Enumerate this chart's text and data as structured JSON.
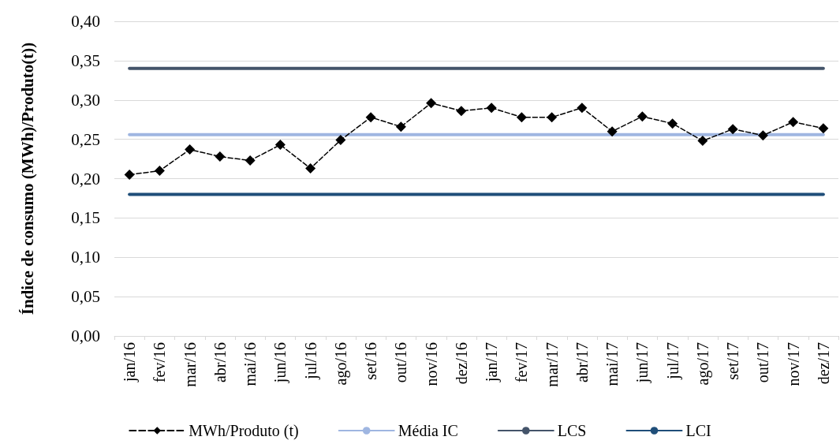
{
  "chart_data": {
    "type": "line",
    "ylabel": "Índice de consumo (MWh)/Produto(t))",
    "categories": [
      "jan/16",
      "fev/16",
      "mar/16",
      "abr/16",
      "mai/16",
      "jun/16",
      "jul/16",
      "ago/16",
      "set/16",
      "out/16",
      "nov/16",
      "dez/16",
      "jan/17",
      "fev/17",
      "mar/17",
      "abr/17",
      "mai/17",
      "jun/17",
      "jul/17",
      "ago/17",
      "set/17",
      "out/17",
      "nov/17",
      "dez/17"
    ],
    "series": [
      {
        "name": "MWh/Produto (t)",
        "color": "#000000",
        "marker": "diamond",
        "line_style": "dashed",
        "values": [
          0.205,
          0.21,
          0.237,
          0.228,
          0.223,
          0.243,
          0.213,
          0.249,
          0.278,
          0.266,
          0.296,
          0.286,
          0.29,
          0.278,
          0.278,
          0.29,
          0.26,
          0.279,
          0.27,
          0.248,
          0.263,
          0.255,
          0.272,
          0.264
        ]
      },
      {
        "name": "Média IC",
        "color": "#9fb6e1",
        "marker": "none",
        "line_style": "solid",
        "values": [
          0.256,
          0.256,
          0.256,
          0.256,
          0.256,
          0.256,
          0.256,
          0.256,
          0.256,
          0.256,
          0.256,
          0.256,
          0.256,
          0.256,
          0.256,
          0.256,
          0.256,
          0.256,
          0.256,
          0.256,
          0.256,
          0.256,
          0.256,
          0.256
        ]
      },
      {
        "name": "LCS",
        "color": "#44546a",
        "marker": "none",
        "line_style": "solid",
        "values": [
          0.34,
          0.34,
          0.34,
          0.34,
          0.34,
          0.34,
          0.34,
          0.34,
          0.34,
          0.34,
          0.34,
          0.34,
          0.34,
          0.34,
          0.34,
          0.34,
          0.34,
          0.34,
          0.34,
          0.34,
          0.34,
          0.34,
          0.34,
          0.34
        ]
      },
      {
        "name": "LCI",
        "color": "#1f4e79",
        "marker": "none",
        "line_style": "solid",
        "values": [
          0.18,
          0.18,
          0.18,
          0.18,
          0.18,
          0.18,
          0.18,
          0.18,
          0.18,
          0.18,
          0.18,
          0.18,
          0.18,
          0.18,
          0.18,
          0.18,
          0.18,
          0.18,
          0.18,
          0.18,
          0.18,
          0.18,
          0.18,
          0.18
        ]
      }
    ],
    "ylim": [
      0,
      0.4
    ],
    "yticks": [
      {
        "value": 0,
        "label": "0,00"
      },
      {
        "value": 0.05,
        "label": "0,05"
      },
      {
        "value": 0.1,
        "label": "0,10"
      },
      {
        "value": 0.15,
        "label": "0,15"
      },
      {
        "value": 0.2,
        "label": "0,20"
      },
      {
        "value": 0.25,
        "label": "0,25"
      },
      {
        "value": 0.3,
        "label": "0,30"
      },
      {
        "value": 0.35,
        "label": "0,35"
      },
      {
        "value": 0.4,
        "label": "0,40"
      }
    ],
    "grid": "y",
    "legend": "bottom"
  }
}
